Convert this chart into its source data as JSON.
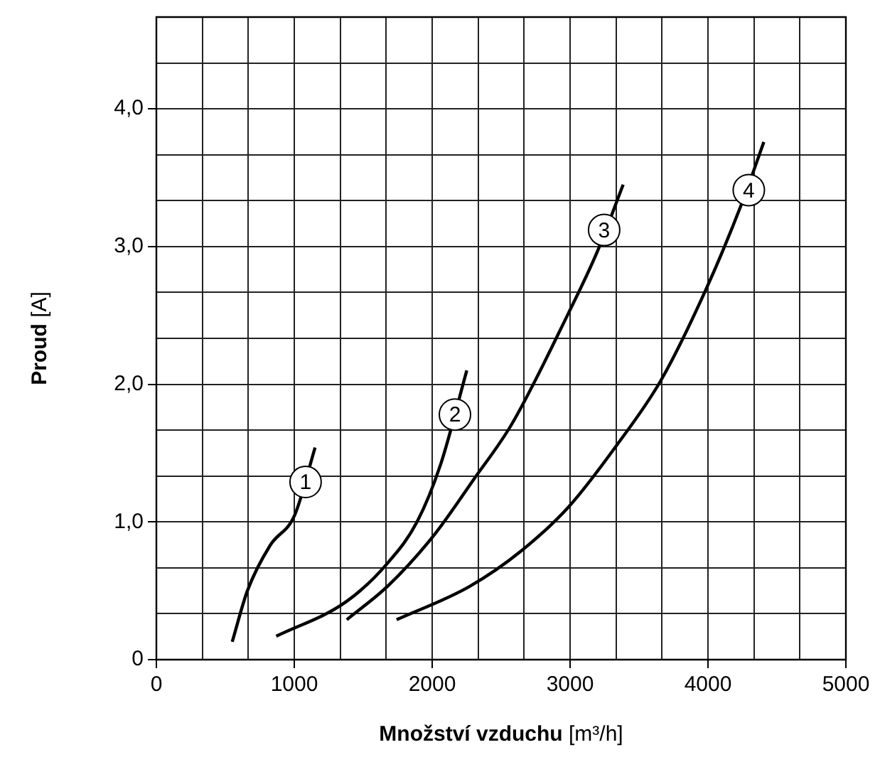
{
  "chart_data": {
    "type": "line",
    "xlabel": "Množství vzduchu [m³/h]",
    "ylabel": "Proud [A]",
    "xlim": [
      0,
      5000
    ],
    "ylim": [
      0,
      4.6667
    ],
    "xticks": [
      0,
      {
        "value": 333.3,
        "label": null
      },
      {
        "value": 666.7,
        "label": null
      },
      1000,
      {
        "value": 1333.3,
        "label": null
      },
      {
        "value": 1666.7,
        "label": null
      },
      2000,
      {
        "value": 2333.3,
        "label": null
      },
      {
        "value": 2666.7,
        "label": null
      },
      3000,
      {
        "value": 3333.3,
        "label": null
      },
      {
        "value": 3666.7,
        "label": null
      },
      4000,
      {
        "value": 4333.3,
        "label": null
      },
      {
        "value": 4666.7,
        "label": null
      },
      5000
    ],
    "yticks": [
      0,
      {
        "value": 0.3333,
        "label": null
      },
      {
        "value": 0.6667,
        "label": null
      },
      {
        "value": 1,
        "label": "1,0"
      },
      {
        "value": 1.3333,
        "label": null
      },
      {
        "value": 1.6667,
        "label": null
      },
      {
        "value": 2,
        "label": "2,0"
      },
      {
        "value": 2.3333,
        "label": null
      },
      {
        "value": 2.6667,
        "label": null
      },
      {
        "value": 3,
        "label": "3,0"
      },
      {
        "value": 3.3333,
        "label": null
      },
      {
        "value": 3.6667,
        "label": null
      },
      {
        "value": 4,
        "label": "4,0"
      },
      {
        "value": 4.3333,
        "label": null
      }
    ],
    "grid": true,
    "legend": false,
    "marker": "none",
    "line_style": "solid",
    "series": [
      {
        "color": "#000000",
        "x": [
          550,
          660,
          825,
          1003,
          1151
        ],
        "values": [
          0.13,
          0.5,
          0.83,
          1.05,
          1.54
        ]
      },
      {
        "color": "#000000",
        "x": [
          869,
          1375,
          1667,
          1890,
          2062,
          2251
        ],
        "values": [
          0.17,
          0.42,
          0.69,
          1.0,
          1.42,
          2.1
        ]
      },
      {
        "color": "#000000",
        "x": [
          1381,
          1684,
          2010,
          2302,
          2577,
          2990,
          3196,
          3385
        ],
        "values": [
          0.29,
          0.54,
          0.9,
          1.31,
          1.71,
          2.52,
          2.96,
          3.45
        ]
      },
      {
        "color": "#000000",
        "x": [
          1742,
          2268,
          2646,
          2990,
          3333,
          3660,
          3986,
          4244,
          4405
        ],
        "values": [
          0.29,
          0.53,
          0.79,
          1.11,
          1.55,
          2.03,
          2.69,
          3.31,
          3.76
        ]
      }
    ],
    "annotations": [
      {
        "text": "1",
        "x": 1082,
        "y": 1.29
      },
      {
        "text": "2",
        "x": 2165,
        "y": 1.78
      },
      {
        "text": "3",
        "x": 3247,
        "y": 3.12
      },
      {
        "text": "4",
        "x": 4296,
        "y": 3.41
      }
    ]
  }
}
